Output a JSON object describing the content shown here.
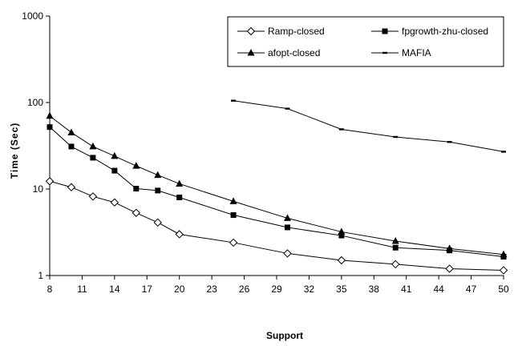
{
  "chart_data": {
    "type": "line",
    "xlabel": "Support",
    "ylabel": "Time (Sec)",
    "yscale": "log",
    "ylim": [
      1,
      1000
    ],
    "xlim": [
      8,
      50
    ],
    "y_ticks": [
      "1",
      "10",
      "100",
      "1000"
    ],
    "x_ticks": [
      "8",
      "11",
      "14",
      "17",
      "20",
      "23",
      "26",
      "29",
      "32",
      "35",
      "38",
      "41",
      "44",
      "47",
      "50"
    ],
    "legend_position": "top-right, two columns",
    "series": [
      {
        "name": "Ramp-closed",
        "marker": "open-diamond",
        "x": [
          8,
          10,
          12,
          14,
          16,
          18,
          20,
          25,
          30,
          35,
          40,
          45,
          50
        ],
        "y": [
          12.3,
          10.5,
          8.2,
          7.0,
          5.3,
          4.1,
          3.0,
          2.4,
          1.8,
          1.5,
          1.35,
          1.2,
          1.15
        ]
      },
      {
        "name": "fpgrowth-zhu-closed",
        "marker": "filled-square",
        "x": [
          8,
          10,
          12,
          14,
          16,
          18,
          20,
          25,
          30,
          35,
          40,
          45,
          50
        ],
        "y": [
          52,
          31,
          23,
          16.3,
          10.1,
          9.6,
          8.0,
          5.0,
          3.6,
          2.9,
          2.1,
          1.95,
          1.65
        ]
      },
      {
        "name": "afopt-closed",
        "marker": "filled-triangle",
        "x": [
          8,
          10,
          12,
          14,
          16,
          18,
          20,
          25,
          30,
          35,
          40,
          45,
          50
        ],
        "y": [
          70,
          45,
          31,
          24,
          18.5,
          14.5,
          11.5,
          7.2,
          4.6,
          3.2,
          2.5,
          2.05,
          1.75
        ]
      },
      {
        "name": "MAFIA",
        "marker": "dash",
        "x": [
          25,
          30,
          35,
          40,
          45,
          50
        ],
        "y": [
          105,
          85,
          49,
          40,
          35,
          27
        ]
      }
    ]
  }
}
